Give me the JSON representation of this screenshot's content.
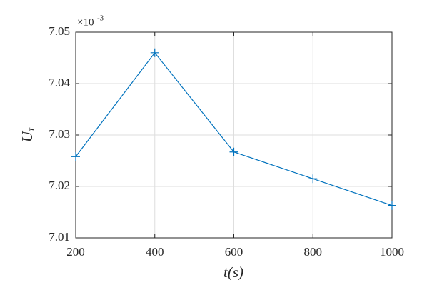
{
  "chart_data": {
    "type": "line",
    "x_label": "t(s)",
    "y_label": "U",
    "y_label_sub": "τ",
    "y_exponent_base": "×10",
    "y_exponent": "-3",
    "x": [
      200,
      400,
      600,
      800,
      1000
    ],
    "series": [
      {
        "color": "#0072bd",
        "marker": "+",
        "values": [
          7.0258,
          7.046,
          7.0267,
          7.0215,
          7.0163
        ]
      }
    ],
    "xlim": [
      200,
      1000
    ],
    "xticks": [
      200,
      400,
      600,
      800,
      1000
    ],
    "ylim": [
      7.01,
      7.05
    ],
    "yticks": [
      7.01,
      7.02,
      7.03,
      7.04,
      7.05
    ],
    "grid": true
  }
}
